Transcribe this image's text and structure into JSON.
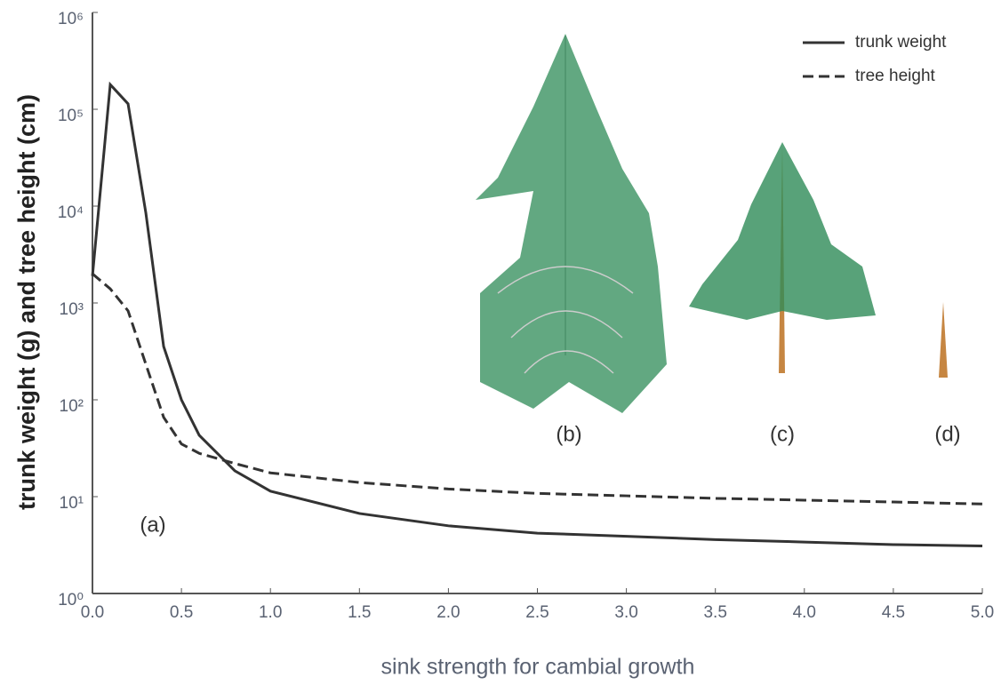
{
  "chart_data": {
    "type": "line",
    "x_label": "sink strength for cambial growth",
    "y_label": "trunk weight (g) and tree height (cm)",
    "log_y": true,
    "legend": "upper right",
    "x": [
      0,
      0.1,
      0.2,
      0.3,
      0.4,
      0.5,
      0.6,
      0.8,
      1.0,
      1.5,
      2.0,
      2.5,
      3.0,
      3.5,
      4.0,
      4.5,
      5.0
    ],
    "series": [
      {
        "name": "trunk weight",
        "color": "#333333",
        "style": "solid",
        "values": [
          1900,
          180000,
          114000,
          8500,
          355,
          100,
          43,
          18.5,
          11.4,
          6.7,
          5,
          4.2,
          3.9,
          3.6,
          3.4,
          3.2,
          3.1
        ]
      },
      {
        "name": "tree height",
        "color": "#333333",
        "style": "dashed",
        "values": [
          2000,
          1400,
          830,
          233,
          66,
          35,
          28,
          22,
          17.6,
          14,
          12,
          10.8,
          10.2,
          9.6,
          9.2,
          8.8,
          8.4
        ]
      }
    ],
    "xlim": [
      0,
      5
    ],
    "xticks": [
      {
        "value": 0,
        "label": "0.0"
      },
      0.5,
      {
        "value": 1,
        "label": "1.0"
      },
      1.5,
      {
        "value": 2,
        "label": "2.0"
      },
      2.5,
      {
        "value": 3,
        "label": "3.0"
      },
      3.5,
      {
        "value": 4,
        "label": "4.0"
      },
      4.5,
      {
        "value": 5,
        "label": "5.0"
      }
    ],
    "ylim": [
      1,
      1000000
    ],
    "yticks": [
      {
        "value": 1,
        "label": "10⁰"
      },
      {
        "value": 10,
        "label": "10¹"
      },
      {
        "value": 100,
        "label": "10²"
      },
      {
        "value": 1000,
        "label": "10³"
      },
      {
        "value": 10000,
        "label": "10⁴"
      },
      {
        "value": 100000,
        "label": "10⁵"
      },
      {
        "value": 1000000,
        "label": "10⁶"
      }
    ],
    "annotations": [
      "(a)",
      "(b)",
      "(c)",
      "(d)"
    ]
  }
}
